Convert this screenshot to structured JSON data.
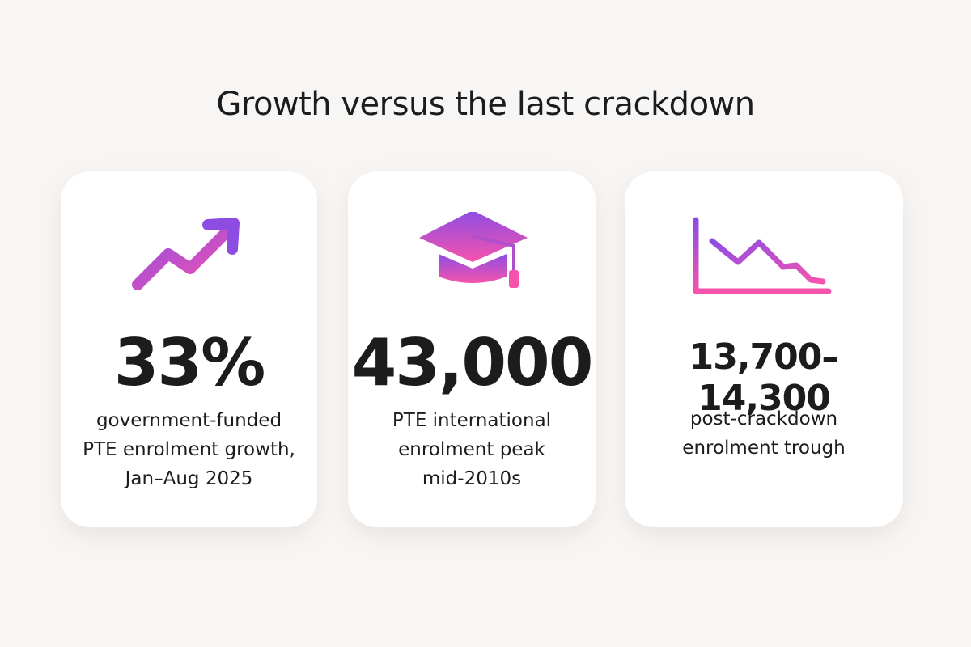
{
  "title": "Growth versus the last crackdown",
  "cards": [
    {
      "stat": "33%",
      "description": [
        "government-funded",
        "PTE enrolment growth,",
        "Jan–Aug 2025"
      ]
    },
    {
      "stat": "43,000",
      "description": [
        "PTE international",
        "enrolment peak",
        "mid-2010s"
      ]
    },
    {
      "stat": "13,700–14,300",
      "description": [
        "post-crackdown",
        "enrolment trough"
      ]
    }
  ]
}
